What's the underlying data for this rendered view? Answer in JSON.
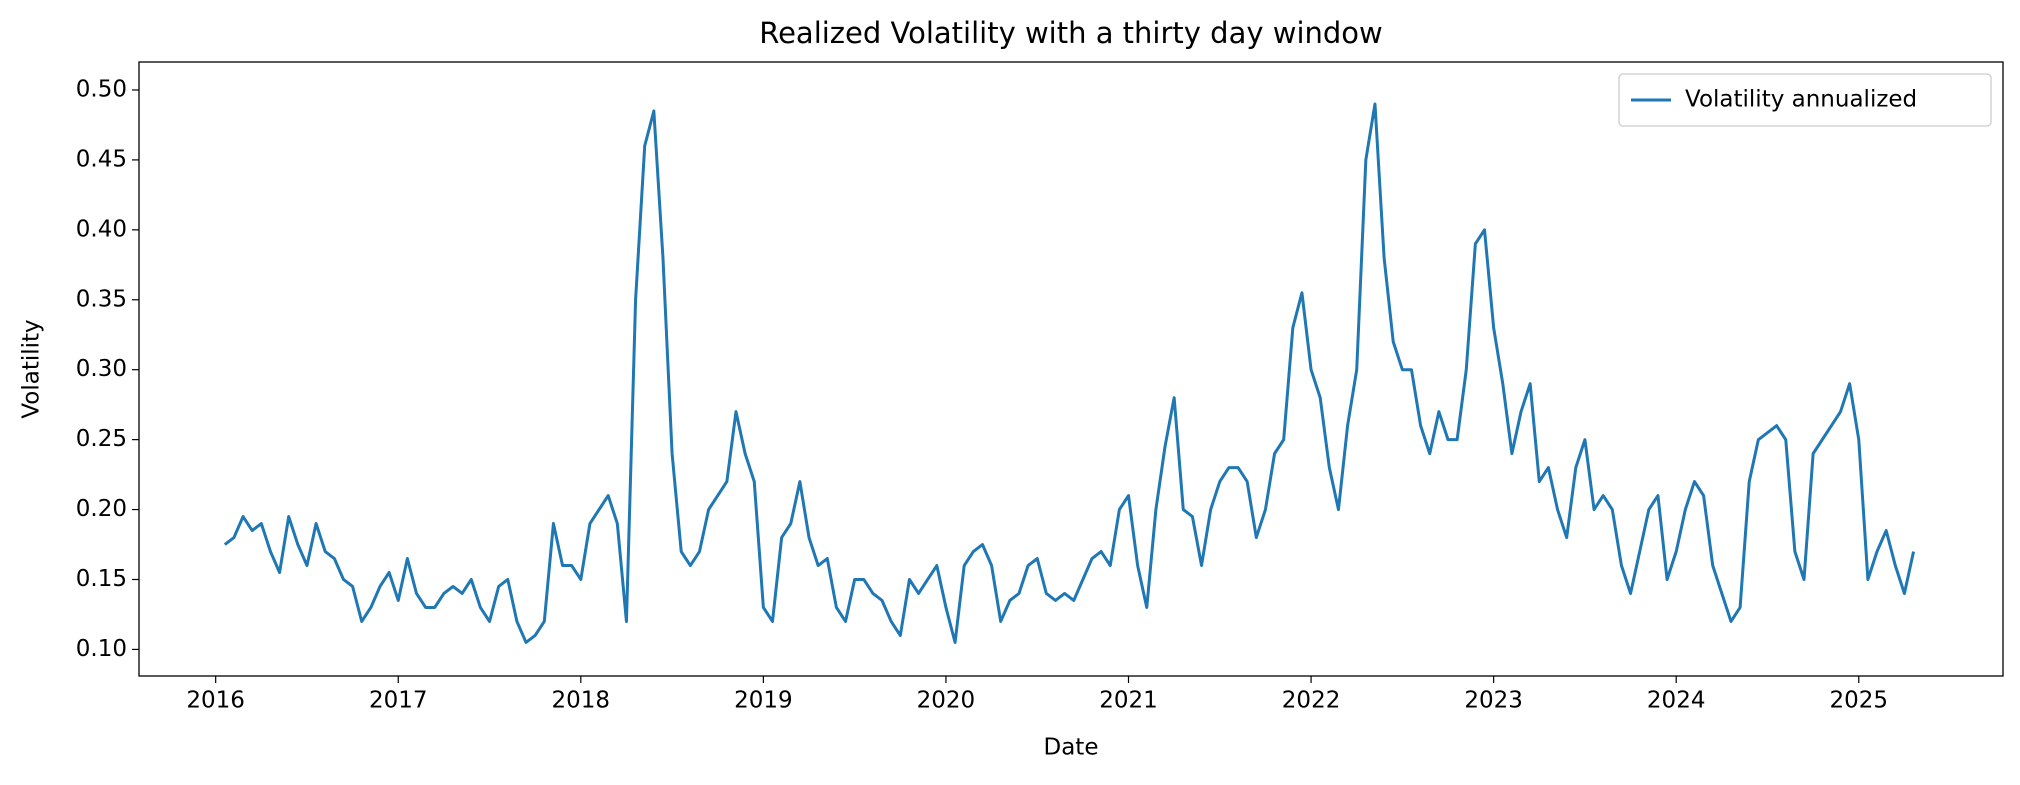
{
  "chart_data": {
    "type": "line",
    "title": "Realized Volatility with a thirty day window",
    "xlabel": "Date",
    "ylabel": "Volatility",
    "legend": "upper right",
    "grid": false,
    "xlim": [
      2015.58,
      2025.79
    ],
    "ylim": [
      0.081,
      0.52
    ],
    "xticks": [
      2016,
      2017,
      2018,
      2019,
      2020,
      2021,
      2022,
      2023,
      2024,
      2025
    ],
    "yticks": [
      {
        "value": 0.1,
        "label": "0.10"
      },
      {
        "value": 0.15,
        "label": "0.15"
      },
      {
        "value": 0.2,
        "label": "0.20"
      },
      {
        "value": 0.25,
        "label": "0.25"
      },
      {
        "value": 0.3,
        "label": "0.30"
      },
      {
        "value": 0.35,
        "label": "0.35"
      },
      {
        "value": 0.4,
        "label": "0.40"
      },
      {
        "value": 0.45,
        "label": "0.45"
      },
      {
        "value": 0.5,
        "label": "0.50"
      }
    ],
    "x": [
      2016.05,
      2016.1,
      2016.15,
      2016.2,
      2016.25,
      2016.3,
      2016.35,
      2016.4,
      2016.45,
      2016.5,
      2016.55,
      2016.6,
      2016.65,
      2016.7,
      2016.75,
      2016.8,
      2016.85,
      2016.9,
      2016.95,
      2017.0,
      2017.05,
      2017.1,
      2017.15,
      2017.2,
      2017.25,
      2017.3,
      2017.35,
      2017.4,
      2017.45,
      2017.5,
      2017.55,
      2017.6,
      2017.65,
      2017.7,
      2017.75,
      2017.8,
      2017.85,
      2017.9,
      2017.95,
      2018.0,
      2018.05,
      2018.1,
      2018.15,
      2018.2,
      2018.25,
      2018.3,
      2018.35,
      2018.4,
      2018.45,
      2018.5,
      2018.55,
      2018.6,
      2018.65,
      2018.7,
      2018.75,
      2018.8,
      2018.85,
      2018.9,
      2018.95,
      2019.0,
      2019.05,
      2019.1,
      2019.15,
      2019.2,
      2019.25,
      2019.3,
      2019.35,
      2019.4,
      2019.45,
      2019.5,
      2019.55,
      2019.6,
      2019.65,
      2019.7,
      2019.75,
      2019.8,
      2019.85,
      2019.9,
      2019.95,
      2020.0,
      2020.05,
      2020.1,
      2020.15,
      2020.2,
      2020.25,
      2020.3,
      2020.35,
      2020.4,
      2020.45,
      2020.5,
      2020.55,
      2020.6,
      2020.65,
      2020.7,
      2020.75,
      2020.8,
      2020.85,
      2020.9,
      2020.95,
      2021.0,
      2021.05,
      2021.1,
      2021.15,
      2021.2,
      2021.25,
      2021.3,
      2021.35,
      2021.4,
      2021.45,
      2021.5,
      2021.55,
      2021.6,
      2021.65,
      2021.7,
      2021.75,
      2021.8,
      2021.85,
      2021.9,
      2021.95,
      2022.0,
      2022.05,
      2022.1,
      2022.15,
      2022.2,
      2022.25,
      2022.3,
      2022.35,
      2022.4,
      2022.45,
      2022.5,
      2022.55,
      2022.6,
      2022.65,
      2022.7,
      2022.75,
      2022.8,
      2022.85,
      2022.9,
      2022.95,
      2023.0,
      2023.05,
      2023.1,
      2023.15,
      2023.2,
      2023.25,
      2023.3,
      2023.35,
      2023.4,
      2023.45,
      2023.5,
      2023.55,
      2023.6,
      2023.65,
      2023.7,
      2023.75,
      2023.8,
      2023.85,
      2023.9,
      2023.95,
      2024.0,
      2024.05,
      2024.1,
      2024.15,
      2024.2,
      2024.25,
      2024.3,
      2024.35,
      2024.4,
      2024.45,
      2024.5,
      2024.55,
      2024.6,
      2024.65,
      2024.7,
      2024.75,
      2024.8,
      2024.85,
      2024.9,
      2024.95,
      2025.0,
      2025.05,
      2025.1,
      2025.15,
      2025.2,
      2025.25,
      2025.3
    ],
    "series": [
      {
        "name": "Volatility annualized",
        "color": "#1f77b4",
        "values": [
          0.175,
          0.18,
          0.195,
          0.185,
          0.19,
          0.17,
          0.155,
          0.195,
          0.175,
          0.16,
          0.19,
          0.17,
          0.165,
          0.15,
          0.145,
          0.12,
          0.13,
          0.145,
          0.155,
          0.135,
          0.165,
          0.14,
          0.13,
          0.13,
          0.14,
          0.145,
          0.14,
          0.15,
          0.13,
          0.12,
          0.145,
          0.15,
          0.12,
          0.105,
          0.11,
          0.12,
          0.19,
          0.16,
          0.16,
          0.15,
          0.19,
          0.2,
          0.21,
          0.19,
          0.12,
          0.35,
          0.46,
          0.485,
          0.38,
          0.24,
          0.17,
          0.16,
          0.17,
          0.2,
          0.21,
          0.22,
          0.27,
          0.24,
          0.22,
          0.13,
          0.12,
          0.18,
          0.19,
          0.22,
          0.18,
          0.16,
          0.165,
          0.13,
          0.12,
          0.15,
          0.15,
          0.14,
          0.135,
          0.12,
          0.11,
          0.15,
          0.14,
          0.15,
          0.16,
          0.13,
          0.105,
          0.16,
          0.17,
          0.175,
          0.16,
          0.12,
          0.135,
          0.14,
          0.16,
          0.165,
          0.14,
          0.135,
          0.14,
          0.135,
          0.15,
          0.165,
          0.17,
          0.16,
          0.2,
          0.21,
          0.16,
          0.13,
          0.2,
          0.245,
          0.28,
          0.2,
          0.195,
          0.16,
          0.2,
          0.22,
          0.23,
          0.23,
          0.22,
          0.18,
          0.2,
          0.24,
          0.25,
          0.33,
          0.355,
          0.3,
          0.28,
          0.23,
          0.2,
          0.26,
          0.3,
          0.45,
          0.49,
          0.38,
          0.32,
          0.3,
          0.3,
          0.26,
          0.24,
          0.27,
          0.25,
          0.25,
          0.3,
          0.39,
          0.4,
          0.33,
          0.29,
          0.24,
          0.27,
          0.29,
          0.22,
          0.23,
          0.2,
          0.18,
          0.23,
          0.25,
          0.2,
          0.21,
          0.2,
          0.16,
          0.14,
          0.17,
          0.2,
          0.21,
          0.15,
          0.17,
          0.2,
          0.22,
          0.21,
          0.16,
          0.14,
          0.12,
          0.13,
          0.22,
          0.25,
          0.255,
          0.26,
          0.25,
          0.17,
          0.15,
          0.24,
          0.25,
          0.26,
          0.27,
          0.29,
          0.25,
          0.15,
          0.17,
          0.185,
          0.16,
          0.14,
          0.17
        ]
      }
    ]
  }
}
